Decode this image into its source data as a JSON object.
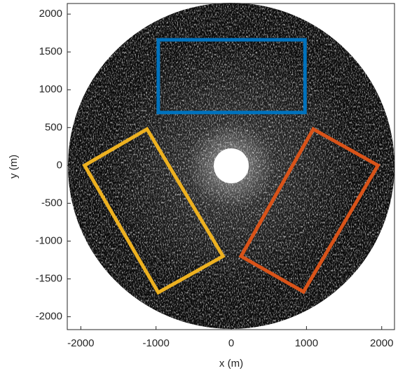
{
  "chart_data": {
    "type": "polygon",
    "xlabel": "x (m)",
    "ylabel": "y (m)",
    "xlim": [
      -2180,
      2170
    ],
    "ylim": [
      -2170,
      2140
    ],
    "xticks": [
      -2000,
      -1000,
      0,
      1000,
      2000
    ],
    "yticks": [
      -2000,
      -1500,
      -1000,
      -500,
      0,
      500,
      1000,
      1500,
      2000
    ],
    "series": [
      {
        "color": "#0072bd",
        "x": [
          -970,
          980,
          980,
          -970
        ],
        "y": [
          1660,
          1660,
          700,
          700
        ]
      },
      {
        "color": "#edb120",
        "x": [
          -1950,
          -1120,
          -110,
          -970
        ],
        "y": [
          0,
          480,
          -1200,
          -1680
        ]
      },
      {
        "color": "#d95319",
        "x": [
          130,
          1090,
          1950,
          960
        ],
        "y": [
          -1200,
          480,
          0,
          -1670
        ]
      }
    ]
  }
}
